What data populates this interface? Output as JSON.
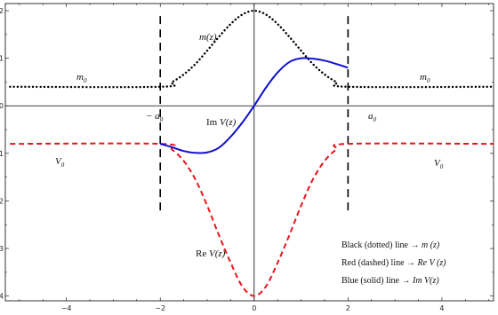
{
  "chart_data": {
    "type": "line",
    "xlim": [
      -5.3,
      5.1
    ],
    "ylim": [
      -4.1,
      2.15
    ],
    "xticks": [
      -4,
      -2,
      0,
      2,
      4
    ],
    "xtick_labels": [
      "−4",
      "−2",
      "0",
      "2",
      "4"
    ],
    "yticks": [
      -4,
      -3,
      -2,
      -1,
      0,
      1,
      2
    ],
    "ytick_labels": [
      "−4",
      "−3",
      "−2",
      "−1",
      "0",
      "1",
      "2"
    ],
    "grid": false,
    "a0": 2,
    "series": [
      {
        "key": "m",
        "style": "dotted",
        "color": "#000000",
        "x": [
          -5.2,
          -2,
          -1.75,
          -1.5,
          -1.25,
          -1,
          -0.75,
          -0.5,
          -0.25,
          0,
          0.25,
          0.5,
          0.75,
          1,
          1.25,
          1.5,
          1.75,
          2,
          5.1
        ],
        "y": [
          0.4,
          0.4,
          0.5,
          0.66,
          0.88,
          1.16,
          1.45,
          1.72,
          1.92,
          2.0,
          1.92,
          1.72,
          1.45,
          1.16,
          0.88,
          0.66,
          0.5,
          0.4,
          0.4
        ]
      },
      {
        "key": "re",
        "style": "dashed",
        "color": "#e8141a",
        "x": [
          -5.2,
          -2,
          -1.75,
          -1.5,
          -1.25,
          -1,
          -0.75,
          -0.5,
          -0.25,
          0,
          0.25,
          0.5,
          0.75,
          1,
          1.25,
          1.5,
          1.75,
          2,
          5.1
        ],
        "y": [
          -0.8,
          -0.8,
          -0.92,
          -1.16,
          -1.55,
          -2.1,
          -2.72,
          -3.3,
          -3.8,
          -4.0,
          -3.8,
          -3.3,
          -2.72,
          -2.1,
          -1.55,
          -1.16,
          -0.92,
          -0.8,
          -0.8
        ]
      },
      {
        "key": "im",
        "style": "solid",
        "color": "#1010d0",
        "x": [
          -2,
          -1.75,
          -1.5,
          -1.25,
          -1,
          -0.75,
          -0.5,
          -0.25,
          0,
          0.25,
          0.5,
          0.75,
          1,
          1.25,
          1.5,
          1.75,
          2
        ],
        "y": [
          -0.8,
          -0.87,
          -0.95,
          -0.99,
          -0.98,
          -0.88,
          -0.65,
          -0.35,
          0.0,
          0.38,
          0.7,
          0.92,
          1.0,
          0.99,
          0.95,
          0.88,
          0.8
        ]
      }
    ],
    "vlines": [
      {
        "x": -2,
        "y": [
          -2.2,
          1.95
        ],
        "style": "dashed"
      },
      {
        "x": 2,
        "y": [
          -2.2,
          1.95
        ],
        "style": "dashed"
      }
    ],
    "annotations": {
      "m_label": "m(z)",
      "m0": "m",
      "m0_sub": "0",
      "neg_a0": "− a",
      "a0": "a",
      "a_sub": "0",
      "im_prefix": "Im ",
      "im_fn": "V(z)",
      "re_prefix": "Re ",
      "re_fn": "V(z)",
      "V0": "V",
      "V0_sub": "0"
    },
    "legend": {
      "placement": "bottom-right",
      "entries": [
        {
          "text": "Black (dotted) line → ",
          "fn": "m (z)"
        },
        {
          "text": "Red  (dashed) line  → ",
          "fn": "Re V (z)"
        },
        {
          "text": "Blue (solid) line  →  ",
          "fn": "Im V(z)"
        }
      ]
    }
  }
}
